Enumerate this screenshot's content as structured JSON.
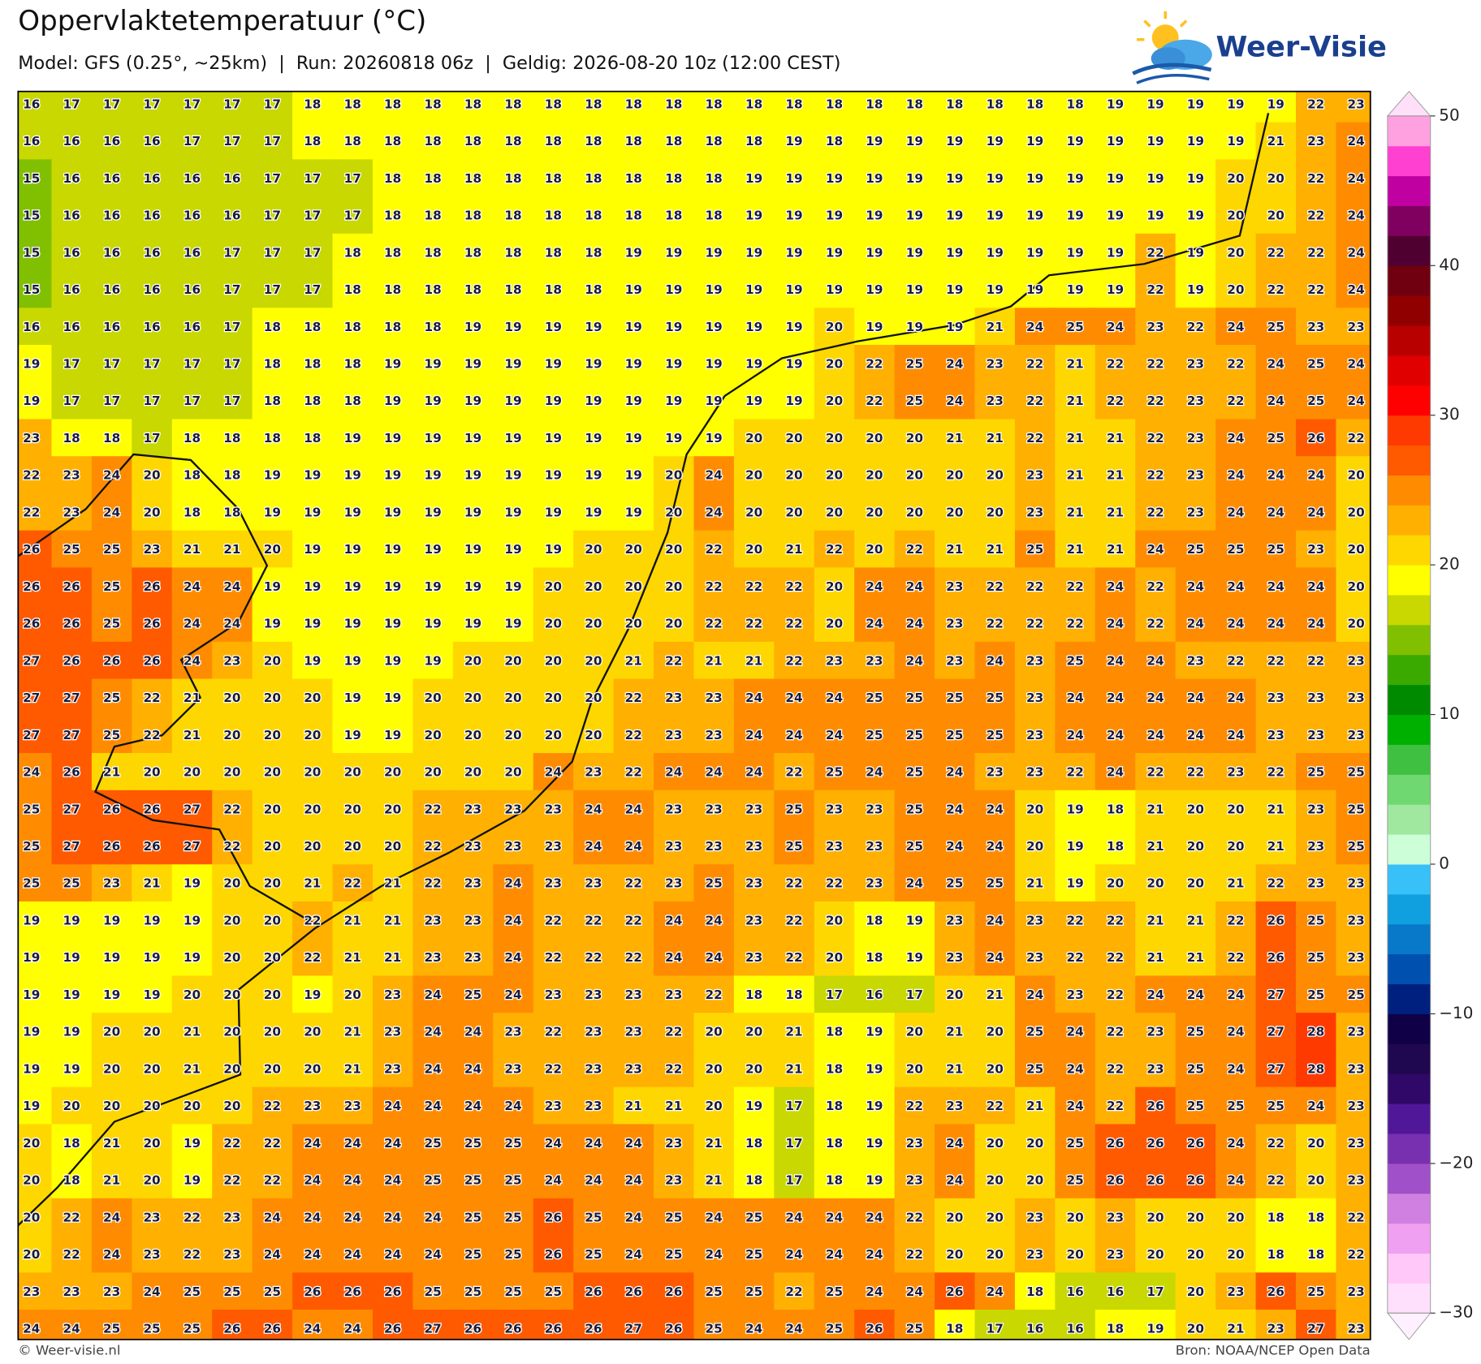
{
  "header": {
    "title": "Oppervlaktetemperatuur (°C)",
    "subtitle": "Model: GFS (0.25°, ~25km)  |  Run: 20260818 06z  |  Geldig: 2026-08-20 10z (12:00 CEST)",
    "logo": "Weer-Visie"
  },
  "map": {
    "grid": [
      [
        16,
        17,
        17,
        17,
        17,
        17,
        17,
        18,
        18,
        18,
        18,
        18,
        18,
        18,
        18,
        18,
        18,
        18,
        18,
        18,
        18,
        18,
        18,
        18,
        18,
        18,
        18,
        19,
        19,
        19,
        19,
        19,
        22,
        23
      ],
      [
        16,
        16,
        16,
        16,
        17,
        17,
        17,
        18,
        18,
        18,
        18,
        18,
        18,
        18,
        18,
        18,
        18,
        18,
        18,
        19,
        18,
        19,
        19,
        19,
        19,
        19,
        19,
        19,
        19,
        19,
        19,
        21,
        23,
        24
      ],
      [
        15,
        16,
        16,
        16,
        16,
        16,
        17,
        17,
        17,
        18,
        18,
        18,
        18,
        18,
        18,
        18,
        18,
        18,
        19,
        19,
        19,
        19,
        19,
        19,
        19,
        19,
        19,
        19,
        19,
        19,
        20,
        20,
        22,
        24
      ],
      [
        15,
        16,
        16,
        16,
        16,
        16,
        17,
        17,
        17,
        18,
        18,
        18,
        18,
        18,
        18,
        18,
        18,
        18,
        19,
        19,
        19,
        19,
        19,
        19,
        19,
        19,
        19,
        19,
        19,
        19,
        20,
        20,
        22,
        24
      ],
      [
        15,
        16,
        16,
        16,
        16,
        17,
        17,
        17,
        18,
        18,
        18,
        18,
        18,
        18,
        18,
        19,
        19,
        19,
        19,
        19,
        19,
        19,
        19,
        19,
        19,
        19,
        19,
        19,
        22,
        19,
        20,
        22,
        22,
        24
      ],
      [
        15,
        16,
        16,
        16,
        16,
        17,
        17,
        17,
        18,
        18,
        18,
        18,
        18,
        18,
        18,
        19,
        19,
        19,
        19,
        19,
        19,
        19,
        19,
        19,
        19,
        19,
        19,
        19,
        22,
        19,
        20,
        22,
        22,
        24
      ],
      [
        16,
        16,
        16,
        16,
        16,
        17,
        18,
        18,
        18,
        18,
        18,
        19,
        19,
        19,
        19,
        19,
        19,
        19,
        19,
        19,
        20,
        19,
        19,
        19,
        21,
        24,
        25,
        24,
        23,
        22,
        24,
        25,
        23,
        23
      ],
      [
        19,
        17,
        17,
        17,
        17,
        17,
        18,
        18,
        18,
        19,
        19,
        19,
        19,
        19,
        19,
        19,
        19,
        19,
        19,
        19,
        20,
        22,
        25,
        24,
        23,
        22,
        21,
        22,
        22,
        23,
        22,
        24,
        25,
        24
      ],
      [
        19,
        17,
        17,
        17,
        17,
        17,
        18,
        18,
        18,
        19,
        19,
        19,
        19,
        19,
        19,
        19,
        19,
        19,
        19,
        19,
        20,
        22,
        25,
        24,
        23,
        22,
        21,
        22,
        22,
        23,
        22,
        24,
        25,
        24
      ],
      [
        23,
        18,
        18,
        17,
        18,
        18,
        18,
        18,
        19,
        19,
        19,
        19,
        19,
        19,
        19,
        19,
        19,
        19,
        20,
        20,
        20,
        20,
        20,
        21,
        21,
        22,
        21,
        21,
        22,
        23,
        24,
        25,
        26,
        22
      ],
      [
        22,
        23,
        24,
        20,
        18,
        18,
        19,
        19,
        19,
        19,
        19,
        19,
        19,
        19,
        19,
        19,
        20,
        24,
        20,
        20,
        20,
        20,
        20,
        20,
        20,
        23,
        21,
        21,
        22,
        23,
        24,
        24,
        24,
        20
      ],
      [
        22,
        23,
        24,
        20,
        18,
        18,
        19,
        19,
        19,
        19,
        19,
        19,
        19,
        19,
        19,
        19,
        20,
        24,
        20,
        20,
        20,
        20,
        20,
        20,
        20,
        23,
        21,
        21,
        22,
        23,
        24,
        24,
        24,
        20
      ],
      [
        26,
        25,
        25,
        23,
        21,
        21,
        20,
        19,
        19,
        19,
        19,
        19,
        19,
        19,
        20,
        20,
        20,
        22,
        20,
        21,
        22,
        20,
        22,
        21,
        21,
        25,
        21,
        21,
        24,
        25,
        25,
        25,
        23,
        20
      ],
      [
        26,
        26,
        25,
        26,
        24,
        24,
        19,
        19,
        19,
        19,
        19,
        19,
        19,
        20,
        20,
        20,
        20,
        22,
        22,
        22,
        20,
        24,
        24,
        23,
        22,
        22,
        22,
        24,
        22,
        24,
        24,
        24,
        24,
        20
      ],
      [
        26,
        26,
        25,
        26,
        24,
        24,
        19,
        19,
        19,
        19,
        19,
        19,
        19,
        20,
        20,
        20,
        20,
        22,
        22,
        22,
        20,
        24,
        24,
        23,
        22,
        22,
        22,
        24,
        22,
        24,
        24,
        24,
        24,
        20
      ],
      [
        27,
        26,
        26,
        26,
        24,
        23,
        20,
        19,
        19,
        19,
        19,
        20,
        20,
        20,
        20,
        21,
        22,
        21,
        21,
        22,
        23,
        23,
        24,
        23,
        24,
        23,
        25,
        24,
        24,
        23,
        22,
        22,
        22,
        23
      ],
      [
        27,
        27,
        25,
        22,
        21,
        20,
        20,
        20,
        19,
        19,
        20,
        20,
        20,
        20,
        20,
        22,
        23,
        23,
        24,
        24,
        24,
        25,
        25,
        25,
        25,
        23,
        24,
        24,
        24,
        24,
        24,
        23,
        23,
        23
      ],
      [
        27,
        27,
        25,
        22,
        21,
        20,
        20,
        20,
        19,
        19,
        20,
        20,
        20,
        20,
        20,
        22,
        23,
        23,
        24,
        24,
        24,
        25,
        25,
        25,
        25,
        23,
        24,
        24,
        24,
        24,
        24,
        23,
        23,
        23
      ],
      [
        24,
        26,
        21,
        20,
        20,
        20,
        20,
        20,
        20,
        20,
        20,
        20,
        20,
        24,
        23,
        22,
        24,
        24,
        24,
        22,
        25,
        24,
        25,
        24,
        23,
        23,
        22,
        24,
        22,
        22,
        23,
        22,
        25,
        25
      ],
      [
        25,
        27,
        26,
        26,
        27,
        22,
        20,
        20,
        20,
        20,
        22,
        23,
        23,
        23,
        24,
        24,
        23,
        23,
        23,
        25,
        23,
        23,
        25,
        24,
        24,
        20,
        19,
        18,
        21,
        20,
        20,
        21,
        23,
        25
      ],
      [
        25,
        27,
        26,
        26,
        27,
        22,
        20,
        20,
        20,
        20,
        22,
        23,
        23,
        23,
        24,
        24,
        23,
        23,
        23,
        25,
        23,
        23,
        25,
        24,
        24,
        20,
        19,
        18,
        21,
        20,
        20,
        21,
        23,
        25
      ],
      [
        25,
        25,
        23,
        21,
        19,
        20,
        20,
        21,
        22,
        21,
        22,
        23,
        24,
        23,
        23,
        22,
        23,
        25,
        23,
        22,
        22,
        23,
        24,
        25,
        25,
        21,
        19,
        20,
        20,
        20,
        21,
        22,
        23,
        23
      ],
      [
        19,
        19,
        19,
        19,
        19,
        20,
        20,
        22,
        21,
        21,
        23,
        23,
        24,
        22,
        22,
        22,
        24,
        24,
        23,
        22,
        20,
        18,
        19,
        23,
        24,
        23,
        22,
        22,
        21,
        21,
        22,
        26,
        25,
        23
      ],
      [
        19,
        19,
        19,
        19,
        19,
        20,
        20,
        22,
        21,
        21,
        23,
        23,
        24,
        22,
        22,
        22,
        24,
        24,
        23,
        22,
        20,
        18,
        19,
        23,
        24,
        23,
        22,
        22,
        21,
        21,
        22,
        26,
        25,
        23
      ],
      [
        19,
        19,
        19,
        19,
        20,
        20,
        20,
        19,
        20,
        23,
        24,
        25,
        24,
        23,
        23,
        23,
        23,
        22,
        18,
        18,
        17,
        16,
        17,
        20,
        21,
        24,
        23,
        22,
        24,
        24,
        24,
        27,
        25,
        25
      ],
      [
        19,
        19,
        20,
        20,
        21,
        20,
        20,
        20,
        21,
        23,
        24,
        24,
        23,
        22,
        23,
        23,
        22,
        20,
        20,
        21,
        18,
        19,
        20,
        21,
        20,
        25,
        24,
        22,
        23,
        25,
        24,
        27,
        28,
        23
      ],
      [
        19,
        19,
        20,
        20,
        21,
        20,
        20,
        20,
        21,
        23,
        24,
        24,
        23,
        22,
        23,
        23,
        22,
        20,
        20,
        21,
        18,
        19,
        20,
        21,
        20,
        25,
        24,
        22,
        23,
        25,
        24,
        27,
        28,
        23
      ],
      [
        19,
        20,
        20,
        20,
        20,
        20,
        22,
        23,
        23,
        24,
        24,
        24,
        24,
        23,
        23,
        21,
        21,
        20,
        19,
        17,
        18,
        19,
        22,
        23,
        22,
        21,
        24,
        22,
        26,
        25,
        25,
        25,
        24,
        23
      ],
      [
        20,
        18,
        21,
        20,
        19,
        22,
        22,
        24,
        24,
        24,
        25,
        25,
        25,
        24,
        24,
        24,
        23,
        21,
        18,
        17,
        18,
        19,
        23,
        24,
        20,
        20,
        25,
        26,
        26,
        26,
        24,
        22,
        20,
        23
      ],
      [
        20,
        18,
        21,
        20,
        19,
        22,
        22,
        24,
        24,
        24,
        25,
        25,
        25,
        24,
        24,
        24,
        23,
        21,
        18,
        17,
        18,
        19,
        23,
        24,
        20,
        20,
        25,
        26,
        26,
        26,
        24,
        22,
        20,
        23
      ],
      [
        20,
        22,
        24,
        23,
        22,
        23,
        24,
        24,
        24,
        24,
        24,
        25,
        25,
        26,
        25,
        24,
        25,
        24,
        25,
        24,
        24,
        24,
        22,
        20,
        20,
        23,
        20,
        23,
        20,
        20,
        20,
        18,
        18,
        22
      ],
      [
        20,
        22,
        24,
        23,
        22,
        23,
        24,
        24,
        24,
        24,
        24,
        25,
        25,
        26,
        25,
        24,
        25,
        24,
        25,
        24,
        24,
        24,
        22,
        20,
        20,
        23,
        20,
        23,
        20,
        20,
        20,
        18,
        18,
        22
      ],
      [
        23,
        23,
        23,
        24,
        25,
        25,
        25,
        26,
        26,
        26,
        25,
        25,
        25,
        25,
        26,
        26,
        26,
        25,
        25,
        22,
        25,
        24,
        24,
        26,
        24,
        18,
        16,
        16,
        17,
        20,
        23,
        26,
        25,
        23
      ],
      [
        24,
        24,
        25,
        25,
        25,
        26,
        26,
        24,
        24,
        26,
        27,
        26,
        26,
        26,
        26,
        27,
        26,
        25,
        24,
        24,
        25,
        26,
        25,
        18,
        17,
        16,
        16,
        18,
        19,
        20,
        21,
        23,
        27,
        23
      ]
    ]
  },
  "colorbar": {
    "range": [
      -30,
      50
    ],
    "ticks": [
      50,
      40,
      30,
      20,
      10,
      0,
      {
        "value": -10,
        "label": "−10"
      },
      {
        "value": -20,
        "label": "−20"
      },
      {
        "value": -30,
        "label": "−30"
      }
    ],
    "colors": [
      "#ffe0fc",
      "#ffc8f8",
      "#f0a0f0",
      "#d080e0",
      "#a050c8",
      "#7830b0",
      "#501898",
      "#300868",
      "#200850",
      "#100048",
      "#002080",
      "#0050b0",
      "#0878c8",
      "#10a0e0",
      "#38c0f8",
      "#ccffd8",
      "#a0e8a0",
      "#70d870",
      "#40c040",
      "#00b000",
      "#008a00",
      "#3aaa00",
      "#80c000",
      "#c8d800",
      "#ffff00",
      "#ffd700",
      "#ffb000",
      "#ff8c00",
      "#ff5a00",
      "#ff3a00",
      "#ff0000",
      "#e00000",
      "#b80000",
      "#900000",
      "#700010",
      "#500030",
      "#800060",
      "#c000a0",
      "#ff40d0",
      "#ffa0e0"
    ],
    "over_color": "#ffe0f8",
    "under_color": "#fff0ff"
  },
  "footer": {
    "left": "© Weer-visie.nl",
    "right": "Bron: NOAA/NCEP Open Data"
  }
}
